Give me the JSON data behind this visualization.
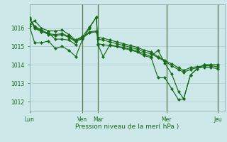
{
  "background_color": "#cce8e8",
  "plot_bg_color": "#cce8e8",
  "grid_color": "#aacccc",
  "line_color": "#1a6b1a",
  "marker_color": "#1a6b1a",
  "vline_color": "#557755",
  "xlabel": "Pression niveau de la mer( hPa )",
  "ylim": [
    1011.5,
    1017.3
  ],
  "yticks": [
    1012,
    1013,
    1014,
    1015,
    1016
  ],
  "xtick_labels": [
    "Lun",
    "Ven",
    "Mar",
    "Mer",
    "Jeu"
  ],
  "xtick_positions": [
    0,
    62,
    80,
    160,
    220
  ],
  "vline_positions": [
    62,
    80,
    160,
    220
  ],
  "series": [
    {
      "x": [
        0,
        6,
        14,
        22,
        30,
        38,
        46,
        54,
        62,
        70,
        78,
        80,
        86,
        94,
        102,
        110,
        118,
        126,
        134,
        142,
        150,
        158,
        166,
        174,
        180,
        188,
        196,
        204,
        212,
        220
      ],
      "y": [
        1016.2,
        1016.4,
        1016.0,
        1015.85,
        1015.85,
        1015.9,
        1015.65,
        1015.35,
        1015.55,
        1016.05,
        1016.6,
        1015.15,
        1015.1,
        1015.05,
        1015.0,
        1014.95,
        1014.85,
        1014.75,
        1014.6,
        1014.45,
        1014.8,
        1014.1,
        1013.5,
        1012.55,
        1012.15,
        1013.45,
        1013.8,
        1014.0,
        1014.0,
        1014.0
      ]
    },
    {
      "x": [
        0,
        6,
        14,
        22,
        30,
        38,
        46,
        54,
        62,
        70,
        78,
        80,
        86,
        94,
        102,
        110,
        118,
        126,
        134,
        142,
        150,
        158,
        166,
        174,
        180,
        188,
        196,
        204,
        212,
        220
      ],
      "y": [
        1016.55,
        1016.1,
        1015.9,
        1015.7,
        1015.65,
        1015.7,
        1015.55,
        1015.3,
        1015.5,
        1015.8,
        1015.85,
        1015.5,
        1015.45,
        1015.35,
        1015.25,
        1015.15,
        1015.05,
        1014.95,
        1014.8,
        1014.7,
        1014.45,
        1014.25,
        1014.05,
        1013.85,
        1013.7,
        1013.85,
        1013.9,
        1013.95,
        1013.95,
        1013.9
      ]
    },
    {
      "x": [
        0,
        6,
        14,
        22,
        30,
        38,
        46,
        54,
        62,
        70,
        78,
        80,
        86,
        94,
        102,
        110,
        118,
        126,
        134,
        142,
        150,
        158,
        166,
        174,
        180,
        188,
        196,
        204,
        212,
        220
      ],
      "y": [
        1016.5,
        1016.05,
        1015.85,
        1015.65,
        1015.6,
        1015.65,
        1015.5,
        1015.25,
        1015.45,
        1015.75,
        1015.8,
        1015.4,
        1015.35,
        1015.25,
        1015.15,
        1015.05,
        1014.95,
        1014.85,
        1014.7,
        1014.6,
        1014.4,
        1014.2,
        1013.95,
        1013.75,
        1013.6,
        1013.75,
        1013.85,
        1013.85,
        1013.85,
        1013.8
      ]
    },
    {
      "x": [
        0,
        6,
        14,
        22,
        30,
        38,
        46,
        54,
        62,
        70,
        78,
        80,
        86,
        94,
        102,
        110,
        118,
        126,
        134,
        142,
        150,
        158,
        166,
        174,
        180,
        188,
        196,
        204,
        212,
        220
      ],
      "y": [
        1016.1,
        1015.2,
        1015.2,
        1015.3,
        1014.9,
        1015.0,
        1014.8,
        1014.45,
        1015.4,
        1016.0,
        1016.6,
        1015.1,
        1014.45,
        1015.1,
        1015.0,
        1014.9,
        1014.8,
        1014.7,
        1014.5,
        1014.4,
        1013.3,
        1013.3,
        1012.7,
        1012.1,
        1012.15,
        1013.45,
        1013.8,
        1014.0,
        1014.0,
        1014.0
      ]
    },
    {
      "x": [
        0,
        6,
        14,
        22,
        30,
        38,
        46,
        54
      ],
      "y": [
        1016.55,
        1016.0,
        1015.8,
        1015.75,
        1015.4,
        1015.4,
        1015.35,
        1015.1
      ]
    }
  ]
}
